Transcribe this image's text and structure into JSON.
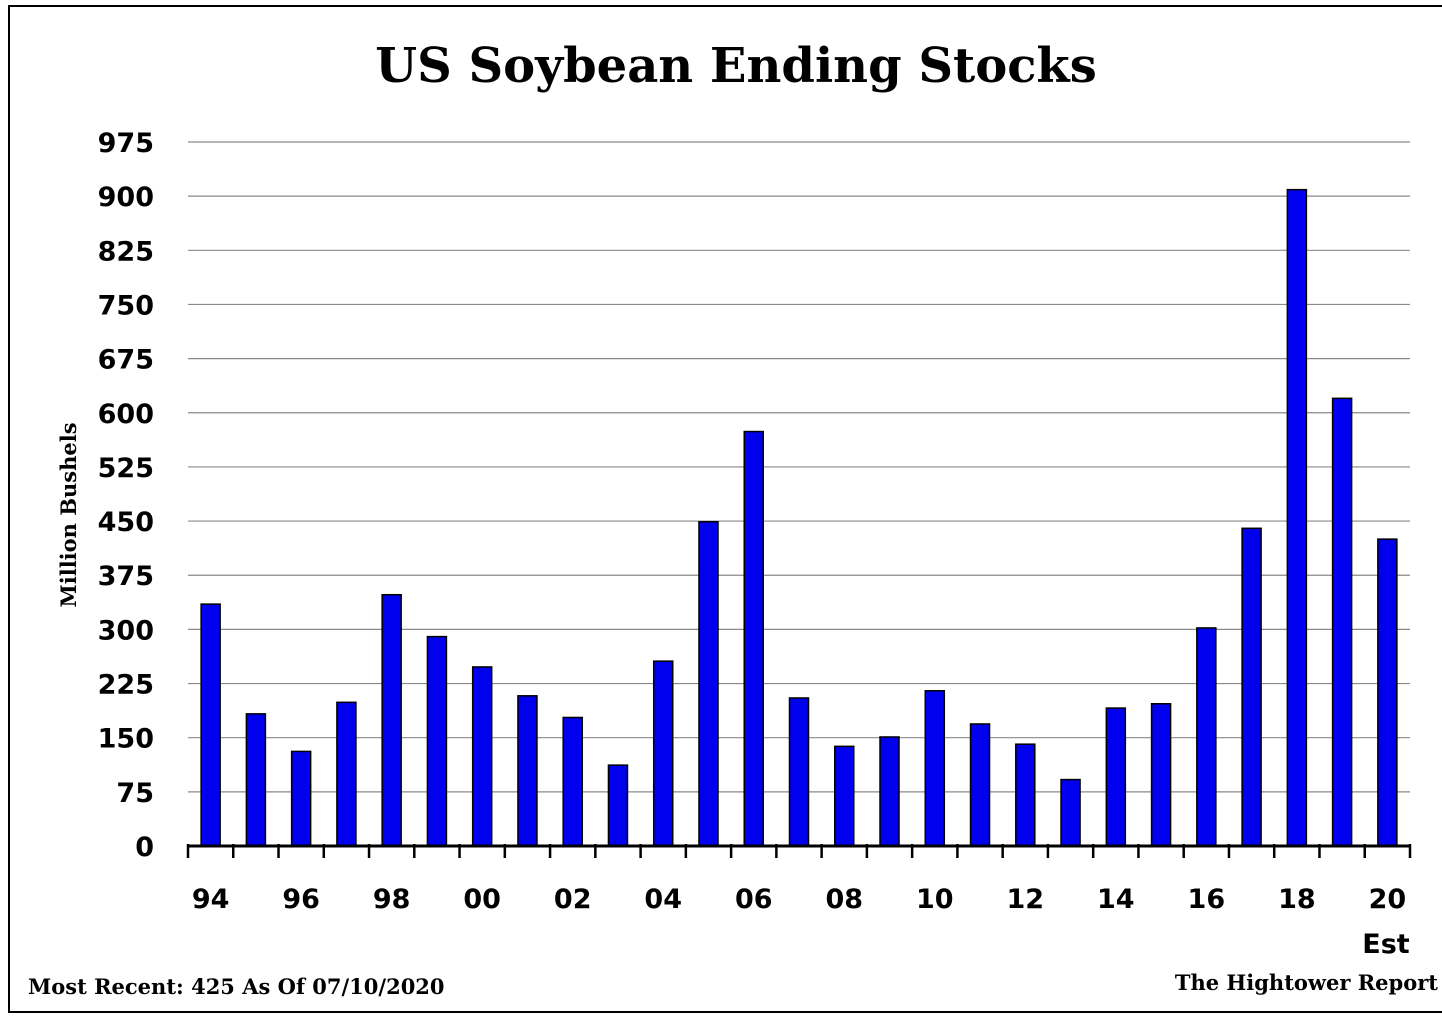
{
  "chart_data": {
    "type": "bar",
    "title": "US Soybean Ending Stocks",
    "ylabel": "Million Bushels",
    "ylim": [
      0,
      975
    ],
    "yticks": [
      0,
      75,
      150,
      225,
      300,
      375,
      450,
      525,
      600,
      675,
      750,
      825,
      900,
      975
    ],
    "categories": [
      "94",
      "95",
      "96",
      "97",
      "98",
      "99",
      "00",
      "01",
      "02",
      "03",
      "04",
      "05",
      "06",
      "07",
      "08",
      "09",
      "10",
      "11",
      "12",
      "13",
      "14",
      "15",
      "16",
      "17",
      "18",
      "19",
      "20"
    ],
    "x_tick_labels": [
      "94",
      "96",
      "98",
      "00",
      "02",
      "04",
      "06",
      "08",
      "10",
      "12",
      "14",
      "16",
      "18",
      "20"
    ],
    "x_tick_sublabel": "Est",
    "values": [
      335,
      183,
      131,
      199,
      348,
      290,
      248,
      208,
      178,
      112,
      256,
      449,
      574,
      205,
      138,
      151,
      215,
      169,
      141,
      92,
      191,
      197,
      302,
      440,
      909,
      620,
      425
    ],
    "bar_color": "#0000ee",
    "grid": true,
    "legend": null
  },
  "footer": {
    "left_note": "Most Recent: 425 As Of 07/10/2020",
    "source": "The Hightower Report"
  }
}
